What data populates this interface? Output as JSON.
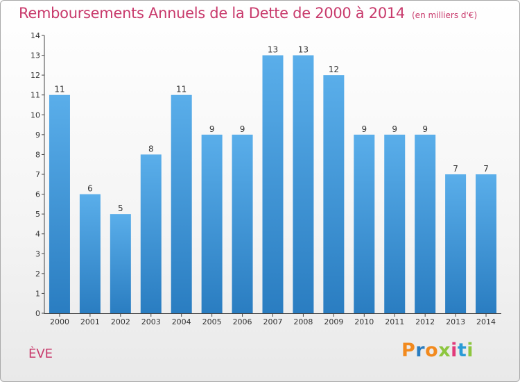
{
  "header": {
    "title": "Remboursements Annuels de la Dette de 2000 à 2014",
    "subtitle": "(en milliers d'€)"
  },
  "footer": {
    "commune": "ÈVE",
    "logo": "Proxiti"
  },
  "colors": {
    "title": "#c8396b",
    "bar_top": "#5aaeea",
    "bar_bottom": "#2a7dc1",
    "logo_letters": [
      "#f28a1e",
      "#2a7dc1",
      "#f28a1e",
      "#8dc63f",
      "#e23a7a",
      "#2a9bd6",
      "#8dc63f"
    ]
  },
  "chart_data": {
    "type": "bar",
    "title": "Remboursements Annuels de la Dette de 2000 à 2014",
    "subtitle": "(en milliers d'€)",
    "categories": [
      "2000",
      "2001",
      "2002",
      "2003",
      "2004",
      "2005",
      "2006",
      "2007",
      "2008",
      "2009",
      "2010",
      "2011",
      "2012",
      "2013",
      "2014"
    ],
    "values": [
      11,
      6,
      5,
      8,
      11,
      9,
      9,
      13,
      13,
      12,
      9,
      9,
      9,
      7,
      7
    ],
    "ylim": [
      0,
      14
    ],
    "yticks": [
      "0",
      "1",
      "2",
      "3",
      "4",
      "5",
      "6",
      "7",
      "8",
      "9",
      "10",
      "11",
      "12",
      "13",
      "14"
    ],
    "xlabel": "",
    "ylabel": "",
    "grid": false,
    "data_labels": true
  }
}
